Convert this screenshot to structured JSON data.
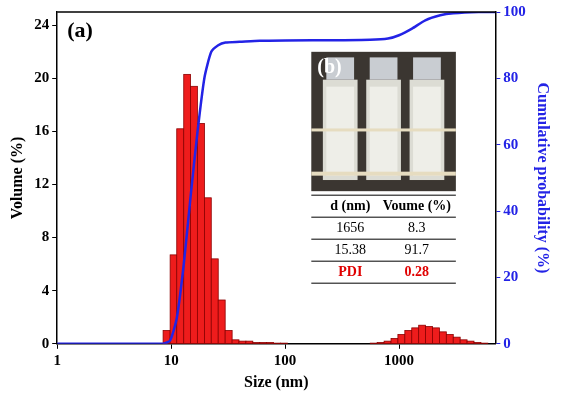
{
  "chart_data": {
    "type": "histogram",
    "panel_labels": [
      "(a)",
      "(b)"
    ],
    "x_label": "Size (nm)",
    "y_label": "Volume (%)",
    "y2_label": "Cumulative probability (%)",
    "log": "x",
    "grid": false,
    "xlim": [
      1,
      7000
    ],
    "xticks": [
      1,
      10,
      100,
      1000
    ],
    "ylim": [
      0,
      25
    ],
    "yticks": [
      0,
      4,
      8,
      12,
      16,
      20,
      24
    ],
    "y2lim": [
      0,
      100
    ],
    "y2ticks": [
      0,
      20,
      40,
      60,
      80,
      100
    ],
    "series": [
      {
        "type": "bar",
        "color": "#ee1c1c",
        "bins": [
          8.5,
          9.8,
          11.2,
          12.9,
          14.8,
          17.0,
          19.6,
          22.5,
          25.9,
          29.8,
          34.3,
          39.4,
          45.3,
          52.1,
          59.9,
          68.9,
          79.2,
          91.1,
          105,
          120,
          138,
          159,
          183,
          210,
          242,
          278,
          320,
          368,
          423,
          486,
          559,
          643,
          740,
          851,
          978,
          1125,
          1294,
          1488,
          1711,
          1968,
          2263,
          2602,
          2993,
          3442,
          3958,
          4552,
          5235,
          6020
        ],
        "values": [
          1.0,
          6.7,
          16.2,
          20.3,
          19.4,
          16.6,
          11.0,
          6.4,
          3.3,
          1.0,
          0.3,
          0.2,
          0.2,
          0.1,
          0.1,
          0.1,
          0.05,
          0.05,
          0,
          0,
          0,
          0,
          0,
          0,
          0,
          0,
          0,
          0,
          0,
          0,
          0.05,
          0.1,
          0.2,
          0.4,
          0.7,
          1.0,
          1.2,
          1.4,
          1.3,
          1.2,
          0.9,
          0.7,
          0.5,
          0.3,
          0.2,
          0.1,
          0.05
        ]
      },
      {
        "type": "line",
        "axis": "y2",
        "color": "#2323e6",
        "x": [
          1,
          7,
          8.5,
          9.8,
          11.2,
          12.9,
          14.8,
          17,
          19.6,
          22.5,
          25.9,
          30,
          40,
          60,
          100,
          300,
          559,
          800,
          1000,
          1300,
          1700,
          2300,
          3000,
          5000,
          7000
        ],
        "values": [
          0,
          0,
          0,
          1,
          7.7,
          23.9,
          44.2,
          63.6,
          80.2,
          88,
          90,
          90.8,
          91,
          91.3,
          91.4,
          91.5,
          91.6,
          92,
          93,
          95,
          97.5,
          99,
          99.6,
          100,
          100
        ]
      }
    ],
    "table": {
      "header": [
        "d (nm)",
        "Voume (%)"
      ],
      "rows": [
        [
          1656,
          8.3
        ],
        [
          15.38,
          91.7
        ],
        [
          "PDI",
          0.28
        ]
      ]
    }
  }
}
